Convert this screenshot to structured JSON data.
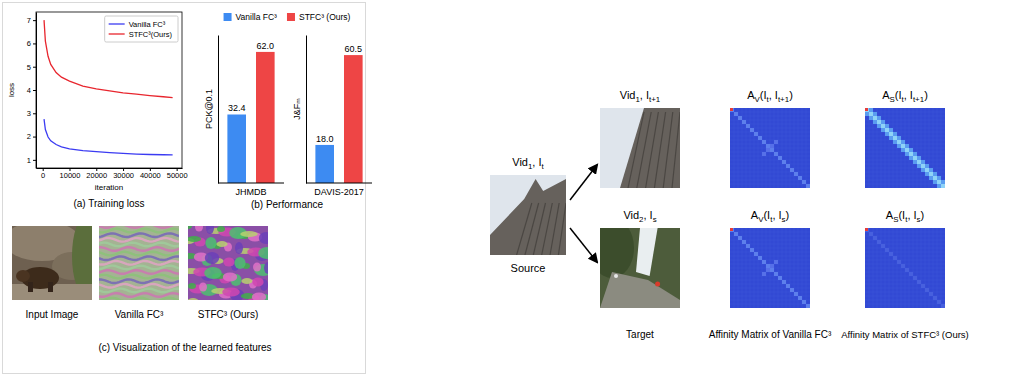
{
  "chart_data": [
    {
      "type": "line",
      "title": "(a) Training loss",
      "x_label": "iteration",
      "y_label": "loss",
      "x": [
        500,
        1000,
        2000,
        3000,
        5000,
        7000,
        10000,
        15000,
        20000,
        25000,
        30000,
        35000,
        40000,
        45000,
        48500
      ],
      "series": [
        {
          "name": "Vanilla FC³",
          "color": "#3b3bf2",
          "values": [
            2.75,
            2.3,
            1.98,
            1.82,
            1.66,
            1.56,
            1.47,
            1.4,
            1.35,
            1.31,
            1.28,
            1.25,
            1.23,
            1.22,
            1.21
          ]
        },
        {
          "name": "STFC³(Ours)",
          "color": "#e8262e",
          "values": [
            7.0,
            6.1,
            5.45,
            5.1,
            4.75,
            4.55,
            4.38,
            4.17,
            4.05,
            3.96,
            3.88,
            3.82,
            3.76,
            3.71,
            3.67
          ]
        }
      ],
      "xlim": [
        -2500,
        52000
      ],
      "ylim": [
        0.65,
        7.35
      ],
      "xticks": [
        0,
        10000,
        20000,
        30000,
        40000,
        50000
      ],
      "yticks": [
        1,
        2,
        3,
        4,
        5,
        6,
        7
      ],
      "legend": "upper right"
    },
    {
      "type": "bar",
      "title": "(b) Performance",
      "y_label": "PCK@0.1",
      "categories": [
        "JHMDB"
      ],
      "ylim": [
        0,
        70
      ],
      "tick_labels": "x",
      "data_labels": true,
      "legend": "top",
      "series": [
        {
          "name": "Vanilla FC³",
          "color": "#3d8bf2",
          "values": [
            32.4
          ],
          "value_labels": [
            "32.4"
          ]
        },
        {
          "name": "STFC³ (Ours)",
          "color": "#ee4545",
          "values": [
            62.0
          ],
          "value_labels": [
            "62.0"
          ]
        }
      ]
    },
    {
      "type": "bar",
      "y_label": "J&Fₘ",
      "categories": [
        "DAVIS-2017"
      ],
      "ylim": [
        0,
        70
      ],
      "tick_labels": "x",
      "data_labels": true,
      "series": [
        {
          "color": "#3d8bf2",
          "values": [
            18.0
          ],
          "value_labels": [
            "18.0"
          ]
        },
        {
          "color": "#ee4545",
          "values": [
            60.5
          ],
          "value_labels": [
            "60.5"
          ]
        }
      ]
    }
  ],
  "features": {
    "title": "(c) Visualization of the learned features",
    "labels": [
      "Input Image",
      "Vanilla FC³",
      "STFC³ (Ours)"
    ]
  },
  "affinity": {
    "source": {
      "label": [
        "Vid",
        "1",
        ", I",
        "t"
      ],
      "caption": "Source"
    },
    "rows": [
      {
        "labels": [
          [
            "Vid",
            "1",
            ", I",
            "t+1"
          ],
          [
            "A",
            "V",
            "(I",
            "t",
            ", I",
            "t+1",
            ")"
          ],
          [
            "A",
            "S",
            "(I",
            "t",
            ", I",
            "t+1",
            ")"
          ]
        ]
      },
      {
        "labels": [
          [
            "Vid",
            "2",
            ", I",
            "s"
          ],
          [
            "A",
            "V",
            "(I",
            "t",
            ", I",
            "s",
            ")"
          ],
          [
            "A",
            "S",
            "(I",
            "t",
            ", I",
            "s",
            ")"
          ]
        ]
      }
    ],
    "captions": [
      "Target",
      "Affinity Matrix of Vanilla FC³",
      "Affinity Matrix of STFC³ (Ours)"
    ]
  }
}
